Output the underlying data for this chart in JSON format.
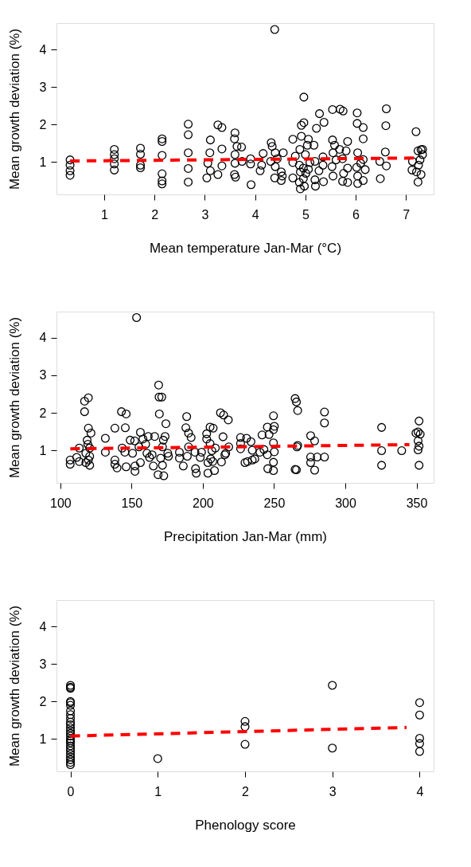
{
  "chart_data": [
    {
      "type": "scatter",
      "xlabel": "Mean temperature Jan-Mar (°C)",
      "ylabel": "Mean growth deviation (%)",
      "xlim": [
        0.05,
        7.55
      ],
      "ylim": [
        0.14,
        4.7
      ],
      "xticks": [
        1,
        2,
        3,
        4,
        5,
        6,
        7
      ],
      "yticks": [
        1,
        2,
        3,
        4
      ],
      "grid": false,
      "marker": "circle",
      "series": [
        {
          "color": "#000000",
          "x": [
            0.32,
            0.32,
            0.32,
            0.32,
            1.2,
            1.2,
            1.2,
            1.2,
            1.2,
            1.72,
            1.72,
            1.72,
            1.72,
            2.15,
            2.15,
            2.15,
            2.15,
            2.15,
            2.15,
            2.67,
            2.67,
            2.67,
            2.67,
            2.67,
            3.11,
            3.1,
            3.06,
            3.04,
            3.11,
            3.26,
            3.34,
            3.34,
            3.34,
            3.26,
            3.6,
            3.59,
            3.64,
            3.73,
            3.6,
            3.6,
            3.59,
            3.61,
            3.74,
            3.91,
            3.91,
            3.92,
            4.1,
            4.13,
            4.16,
            4.39,
            4.32,
            4.34,
            4.4,
            4.31,
            4.4,
            4.39,
            4.52,
            4.54,
            4.52,
            4.56,
            4.44,
            4.97,
            4.92,
            4.97,
            4.75,
            4.92,
            5.06,
            5.04,
            4.89,
            5.0,
            4.8,
            4.75,
            4.88,
            4.96,
            4.9,
            5.01,
            4.75,
            4.96,
            4.9,
            4.98,
            4.88,
            5.09,
            5.06,
            5.28,
            5.37,
            5.22,
            5.17,
            5.19,
            5.35,
            5.27,
            5.19,
            5.36,
            5.2,
            5.35,
            5.54,
            5.69,
            5.75,
            5.54,
            5.58,
            5.55,
            5.68,
            5.84,
            5.81,
            5.74,
            5.53,
            5.55,
            5.76,
            5.84,
            5.74,
            5.84,
            5.61,
            6.03,
            6.03,
            6.15,
            6.15,
            6.04,
            6.15,
            6.1,
            6.02,
            6.19,
            6.04,
            6.04,
            6.15,
            6.61,
            6.6,
            6.59,
            6.48,
            6.61,
            6.49,
            7.2,
            7.13,
            7.12,
            7.24,
            7.3,
            7.33,
            7.28,
            7.25,
            7.21,
            7.3,
            7.24,
            7.33
          ],
          "values": [
            1.06,
            0.92,
            0.77,
            0.65,
            1.34,
            1.2,
            1.09,
            0.95,
            0.79,
            1.37,
            1.21,
            0.92,
            0.85,
            1.62,
            1.55,
            1.18,
            0.69,
            0.5,
            0.42,
            2.01,
            1.73,
            1.25,
            0.83,
            0.47,
            1.59,
            1.25,
            0.97,
            0.58,
            0.77,
            1.99,
            1.92,
            1.35,
            0.9,
            0.67,
            1.78,
            1.62,
            1.42,
            1.4,
            1.2,
            0.97,
            0.67,
            0.6,
            1.02,
            1.09,
            0.95,
            0.4,
            0.77,
            0.92,
            1.23,
            4.53,
            1.52,
            1.42,
            1.25,
            1.02,
            0.88,
            0.58,
            0.74,
            0.63,
            0.51,
            1.25,
            1.09,
            2.73,
            1.98,
            2.05,
            1.61,
            1.69,
            1.61,
            1.45,
            1.34,
            1.2,
            1.16,
            0.99,
            0.92,
            0.84,
            0.74,
            0.7,
            0.58,
            0.56,
            0.29,
            0.36,
            0.46,
            0.99,
            0.81,
            2.29,
            2.06,
            1.9,
            1.45,
            1.02,
            1.14,
            0.77,
            0.53,
            0.48,
            0.36,
            0.92,
            2.4,
            2.41,
            2.36,
            1.59,
            1.45,
            1.25,
            1.34,
            1.55,
            1.3,
            1.09,
            0.88,
            0.63,
            0.7,
            0.84,
            0.49,
            0.46,
            1.06,
            2.31,
            2.03,
            1.92,
            1.62,
            1.25,
            1.07,
            0.97,
            0.86,
            0.8,
            0.63,
            0.43,
            0.51,
            2.42,
            1.97,
            1.27,
            1.02,
            0.9,
            0.56,
            1.81,
            1.02,
            0.79,
            1.3,
            1.33,
            1.2,
            1.06,
            0.92,
            0.74,
            0.67,
            0.47,
            1.34
          ]
        },
        {
          "type": "line",
          "color": "#ff0000",
          "line_style": "dashed",
          "marker": "none",
          "x": [
            0.32,
            7.2
          ],
          "values": [
            1.03,
            1.11
          ]
        }
      ]
    },
    {
      "type": "scatter",
      "xlabel": "Precipitation Jan-Mar (mm)",
      "ylabel": "Mean growth deviation (%)",
      "xlim": [
        97.3,
        362
      ],
      "ylim": [
        0.13,
        4.7
      ],
      "xticks": [
        100,
        150,
        200,
        250,
        300,
        350
      ],
      "yticks": [
        1,
        2,
        3,
        4
      ],
      "grid": false,
      "marker": "circle",
      "series": [
        {
          "color": "#000000",
          "x": [
            106.9,
            106.9,
            111.5,
            113.3,
            113.3,
            117,
            119.7,
            117,
            119.7,
            121.5,
            118.8,
            119.3,
            120.6,
            117.9,
            120.6,
            119.7,
            120.6,
            117.9,
            131.6,
            131.6,
            138.3,
            138.3,
            138.3,
            139.8,
            142.9,
            146.2,
            145.6,
            143.4,
            145.3,
            146.2,
            149,
            152.2,
            153.5,
            150.7,
            152.4,
            152.4,
            155.2,
            156.2,
            158,
            159.9,
            161.7,
            160.8,
            162.6,
            156.2,
            165.3,
            166.2,
            164.4,
            169,
            169.3,
            171.2,
            169.5,
            174.1,
            173.5,
            172.3,
            171.7,
            170.4,
            171.7,
            168.6,
            172.6,
            175.9,
            175.4,
            183.6,
            183.6,
            186.3,
            188.7,
            188.1,
            190,
            191.8,
            190,
            189.1,
            194.5,
            194.9,
            195.4,
            198.2,
            199.1,
            202.7,
            202.7,
            203.6,
            203.6,
            205.1,
            205.1,
            206.4,
            205.5,
            207.3,
            208.2,
            208.8,
            207,
            212.4,
            214.6,
            217.9,
            214.2,
            218.2,
            216.1,
            213.1,
            215.5,
            226.5,
            226.5,
            226.5,
            230.7,
            233.8,
            234.7,
            229.6,
            231.4,
            234.7,
            236.5,
            241.6,
            240.1,
            242.9,
            245.3,
            246.5,
            245.3,
            245.6,
            249.6,
            250.2,
            249.6,
            249.6,
            250.2,
            249.6,
            249.6,
            264.8,
            265.7,
            266.6,
            266.1,
            266.6,
            264.8,
            265.7,
            275.7,
            278.5,
            275.7,
            280.3,
            275.7,
            278.5,
            285.4,
            285.4,
            285.4,
            325.5,
            325.5,
            325.5,
            339.6,
            351.8,
            351.1,
            352.6,
            351.1,
            351.8,
            351.1,
            351.8,
            349.6
          ],
          "values": [
            0.74,
            0.63,
            0.81,
            0.7,
            1.06,
            2.31,
            2.4,
            2.03,
            1.59,
            1.46,
            1.27,
            1.16,
            1.06,
            0.92,
            0.84,
            0.74,
            0.6,
            0.67,
            1.32,
            0.95,
            1.59,
            0.74,
            0.63,
            0.53,
            2.03,
            1.97,
            1.6,
            1.06,
            0.95,
            0.56,
            1.27,
            1.25,
            4.54,
            0.92,
            0.58,
            0.44,
            1.09,
            1.48,
            1.3,
            1.16,
            1.37,
            0.92,
            0.81,
            0.67,
            0.58,
            1.37,
            0.88,
            2.74,
            2.42,
            2.42,
            1.97,
            1.71,
            1.37,
            1.27,
            1.09,
            0.79,
            0.6,
            0.35,
            0.32,
            0.84,
            0.92,
            0.95,
            0.79,
            0.58,
            1.9,
            1.6,
            1.46,
            1.34,
            1.09,
            0.84,
            0.95,
            0.51,
            0.39,
            0.81,
            0.95,
            1.44,
            1.3,
            0.67,
            0.39,
            1.62,
            1.18,
            0.99,
            0.77,
            1.59,
            0.46,
            1.06,
            0.7,
            2.0,
            1.94,
            1.81,
            1.36,
            1.09,
            0.92,
            0.69,
            0.88,
            1.34,
            1.18,
            1.04,
            1.32,
            1.23,
            1.0,
            0.67,
            0.7,
            0.74,
            0.77,
            1.41,
            0.95,
            1.02,
            1.62,
            1.42,
            0.88,
            0.51,
            1.92,
            1.64,
            1.55,
            1.2,
            0.96,
            0.68,
            0.46,
            2.38,
            2.29,
            2.06,
            1.09,
            1.13,
            0.49,
            0.48,
            1.39,
            1.25,
            0.82,
            0.82,
            0.67,
            0.47,
            2.02,
            1.73,
            0.82,
            1.61,
            0.99,
            0.6,
            0.99,
            1.78,
            1.49,
            1.43,
            1.25,
            1.11,
            1.01,
            0.6,
            1.46
          ]
        },
        {
          "type": "line",
          "color": "#ff0000",
          "line_style": "dashed",
          "marker": "none",
          "x": [
            107,
            345
          ],
          "values": [
            1.04,
            1.15
          ]
        }
      ]
    },
    {
      "type": "scatter",
      "xlabel": "Phenology score",
      "ylabel": "Mean growth deviation (%)",
      "xlim": [
        -0.16,
        4.16
      ],
      "ylim": [
        0.14,
        4.7
      ],
      "xticks": [
        0,
        1,
        2,
        3,
        4
      ],
      "yticks": [
        1,
        2,
        3,
        4
      ],
      "grid": false,
      "marker": "circle",
      "series": [
        {
          "color": "#000000",
          "x": [
            0,
            0,
            0,
            0,
            0,
            0,
            0,
            0,
            0,
            0,
            0,
            0,
            0,
            0,
            0,
            0,
            0,
            0,
            0,
            0,
            0,
            0,
            0,
            0,
            0,
            0,
            1,
            2,
            2,
            2,
            3,
            3,
            4,
            4,
            4,
            4,
            4
          ],
          "values": [
            2.43,
            2.38,
            2.35,
            2.0,
            1.97,
            1.9,
            1.75,
            1.65,
            1.55,
            1.45,
            1.38,
            1.3,
            1.22,
            1.15,
            1.08,
            1.0,
            0.95,
            0.9,
            0.82,
            0.75,
            0.68,
            0.6,
            0.52,
            0.45,
            0.38,
            0.32,
            0.48,
            1.47,
            1.33,
            0.86,
            2.43,
            0.76,
            1.97,
            1.64,
            1.02,
            0.88,
            0.67
          ]
        },
        {
          "type": "line",
          "color": "#ff0000",
          "line_style": "dashed",
          "marker": "none",
          "x": [
            0,
            3.85
          ],
          "values": [
            1.08,
            1.31
          ]
        }
      ]
    }
  ]
}
